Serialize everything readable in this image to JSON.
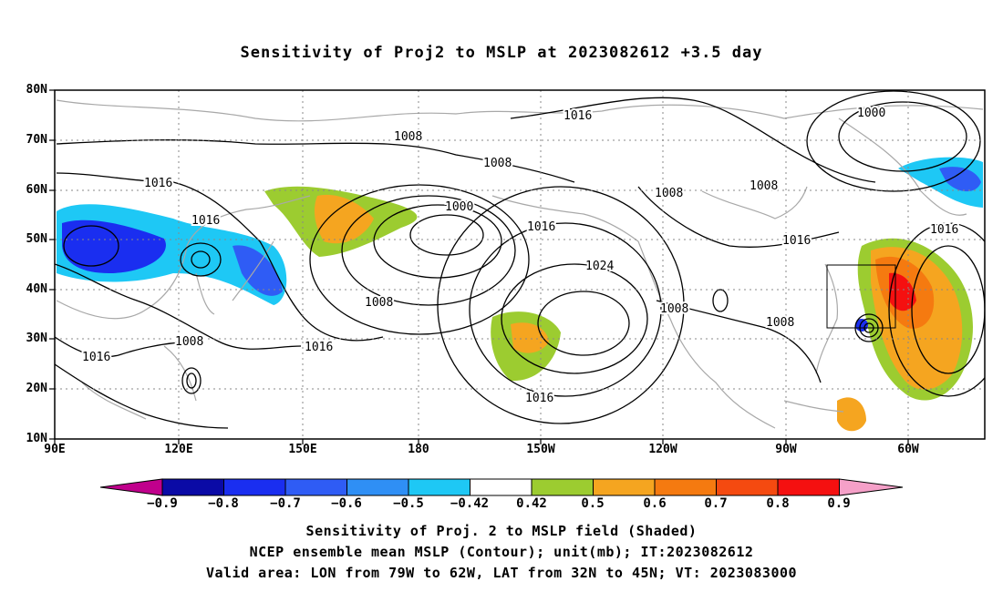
{
  "title": "Sensitivity of Proj2 to MSLP at 2023082612 +3.5 day",
  "lat_labels": [
    "80N",
    "70N",
    "60N",
    "50N",
    "40N",
    "30N",
    "20N",
    "10N"
  ],
  "lon_labels": [
    "90E",
    "120E",
    "150E",
    "180",
    "150W",
    "120W",
    "90W",
    "60W"
  ],
  "contour_labels": {
    "c1": "1016",
    "c2": "1008",
    "c3": "1016",
    "c4": "1008",
    "c5": "1016",
    "c6": "1000",
    "c7": "1016",
    "c8": "1008",
    "c9": "1016",
    "c10": "1008",
    "c11": "1016",
    "c12": "1008",
    "c13": "1016",
    "c14": "1024",
    "c15": "1008",
    "c16": "1008",
    "c17": "1008",
    "c18": "1000",
    "c19": "1016",
    "c20": "1016",
    "c21": "1016"
  },
  "colorbar": {
    "labels": [
      "−0.9",
      "−0.8",
      "−0.7",
      "−0.6",
      "−0.5",
      "−0.42",
      "0.42",
      "0.5",
      "0.6",
      "0.7",
      "0.8",
      "0.9"
    ],
    "colors": [
      "#0a0aa6",
      "#1a2ef0",
      "#2f5cf5",
      "#2f8ff5",
      "#1ec8f5",
      "#ffffff",
      "#9ccc30",
      "#f5a520",
      "#f57a10",
      "#f54a10",
      "#f51010"
    ],
    "low_end_color": "#c0008c",
    "high_end_color": "#f5a0c8"
  },
  "captions": {
    "line1": "Sensitivity of Proj. 2 to MSLP field (Shaded)",
    "line2": "NCEP ensemble mean MSLP (Contour); unit(mb); IT:2023082612",
    "line3": "Valid area: LON from 79W to 62W, LAT from 32N to 45N; VT: 2023083000"
  }
}
